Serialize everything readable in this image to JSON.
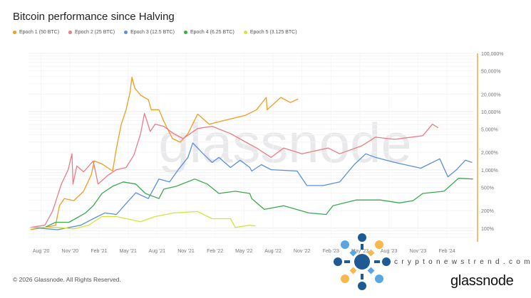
{
  "title": "Bitcoin performance since Halving",
  "copyright": "© 2026 Glassnode. All Rights Reserved.",
  "watermark": "glassnode",
  "brand_logo": "glassnode",
  "overlay_site": "cryptonewstrend.com",
  "chart_data": {
    "type": "line",
    "title": "Bitcoin performance since Halving",
    "xlabel": "",
    "ylabel": "",
    "x_units": "months since May 2020 halving",
    "xlim": [
      1.4,
      47.5
    ],
    "y_scale": "log",
    "ylim": [
      67,
      100000
    ],
    "grid": true,
    "legend_position": "top-left",
    "x_ticks": [
      {
        "x": 2.7,
        "label": "Aug '20"
      },
      {
        "x": 5.7,
        "label": "Nov '20"
      },
      {
        "x": 8.7,
        "label": "Feb '21"
      },
      {
        "x": 11.7,
        "label": "May '21"
      },
      {
        "x": 14.7,
        "label": "Aug '21"
      },
      {
        "x": 17.7,
        "label": "Nov '21"
      },
      {
        "x": 20.7,
        "label": "Feb '22"
      },
      {
        "x": 23.7,
        "label": "May '22"
      },
      {
        "x": 26.7,
        "label": "Aug '22"
      },
      {
        "x": 29.7,
        "label": "Nov '22"
      },
      {
        "x": 32.7,
        "label": "Feb '23"
      },
      {
        "x": 35.7,
        "label": "May '23"
      },
      {
        "x": 38.7,
        "label": "Aug '23"
      },
      {
        "x": 41.7,
        "label": "Nov '23"
      },
      {
        "x": 44.7,
        "label": "Feb '24"
      }
    ],
    "y_ticks": [
      {
        "y": 100000,
        "label": "100,000%"
      },
      {
        "y": 50000,
        "label": "50,000%"
      },
      {
        "y": 20000,
        "label": "20,000%"
      },
      {
        "y": 10000,
        "label": "10,000%"
      },
      {
        "y": 5000,
        "label": "5,000%"
      },
      {
        "y": 2000,
        "label": "2,000%"
      },
      {
        "y": 1000,
        "label": "1,000%"
      },
      {
        "y": 500,
        "label": "500%"
      },
      {
        "y": 200,
        "label": "200%"
      },
      {
        "y": 100,
        "label": "100%"
      }
    ],
    "series": [
      {
        "name": "Epoch 1 (50 BTC)",
        "color": "#f39c1f",
        "points": [
          [
            1.6,
            94
          ],
          [
            3.1,
            103
          ],
          [
            4.2,
            112
          ],
          [
            4.6,
            242
          ],
          [
            5.1,
            322
          ],
          [
            6.1,
            296
          ],
          [
            7.1,
            429
          ],
          [
            7.9,
            826
          ],
          [
            8.2,
            1420
          ],
          [
            9.0,
            1267
          ],
          [
            10.1,
            953
          ],
          [
            10.5,
            2373
          ],
          [
            11.0,
            6081
          ],
          [
            11.5,
            10770
          ],
          [
            11.9,
            21380
          ],
          [
            12.1,
            38900
          ],
          [
            12.4,
            25350
          ],
          [
            13.0,
            19050
          ],
          [
            13.8,
            16060
          ],
          [
            14.1,
            10770
          ],
          [
            14.9,
            10770
          ],
          [
            15.4,
            6823
          ],
          [
            16.3,
            3443
          ],
          [
            17.1,
            2985
          ],
          [
            17.9,
            4198
          ],
          [
            18.9,
            9080
          ],
          [
            20.1,
            6081
          ],
          [
            21.6,
            7015
          ],
          [
            23.8,
            8570
          ],
          [
            25.0,
            10770
          ],
          [
            26.0,
            17500
          ],
          [
            26.1,
            10770
          ],
          [
            27.5,
            17500
          ],
          [
            28.5,
            14320
          ],
          [
            29.3,
            16520
          ]
        ]
      },
      {
        "name": "Epoch 2 (25 BTC)",
        "color": "#ec7b85",
        "points": [
          [
            1.6,
            103
          ],
          [
            3.1,
            112
          ],
          [
            3.9,
            198
          ],
          [
            4.8,
            570
          ],
          [
            5.5,
            1008
          ],
          [
            5.9,
            1888
          ],
          [
            6.0,
            570
          ],
          [
            6.4,
            1164
          ],
          [
            7.1,
            926
          ],
          [
            8.1,
            1420
          ],
          [
            8.6,
            570
          ],
          [
            9.6,
            803
          ],
          [
            10.5,
            1008
          ],
          [
            11.5,
            1099
          ],
          [
            12.3,
            1786
          ],
          [
            13.0,
            4198
          ],
          [
            13.4,
            9333
          ],
          [
            14.0,
            4571
          ],
          [
            14.5,
            6081
          ],
          [
            15.4,
            5585
          ],
          [
            16.4,
            4198
          ],
          [
            17.4,
            3443
          ],
          [
            18.9,
            5129
          ],
          [
            20.4,
            5585
          ],
          [
            22.3,
            4198
          ],
          [
            24.3,
            2735
          ],
          [
            25.0,
            2373
          ],
          [
            26.5,
            1637
          ],
          [
            27.8,
            2373
          ],
          [
            29.7,
            1888
          ],
          [
            32.4,
            2373
          ],
          [
            33.6,
            1888
          ],
          [
            35.9,
            2587
          ],
          [
            37.3,
            3640
          ],
          [
            39.3,
            3342
          ],
          [
            42.2,
            3855
          ],
          [
            43.2,
            6081
          ],
          [
            43.8,
            5272
          ]
        ]
      },
      {
        "name": "Epoch 3 (12.5 BTC)",
        "color": "#5b8fdc",
        "points": [
          [
            1.6,
            103
          ],
          [
            4.4,
            94
          ],
          [
            6.8,
            112
          ],
          [
            8.1,
            145
          ],
          [
            9.3,
            182
          ],
          [
            10.5,
            172
          ],
          [
            11.5,
            264
          ],
          [
            12.5,
            405
          ],
          [
            13.8,
            322
          ],
          [
            14.9,
            697
          ],
          [
            16.0,
            621
          ],
          [
            16.9,
            1008
          ],
          [
            17.9,
            1637
          ],
          [
            18.4,
            2897
          ],
          [
            19.4,
            1945
          ],
          [
            20.4,
            1342
          ],
          [
            21.1,
            1637
          ],
          [
            22.3,
            1099
          ],
          [
            23.3,
            1462
          ],
          [
            24.3,
            1099
          ],
          [
            24.5,
            953
          ],
          [
            25.5,
            1230
          ],
          [
            26.5,
            1008
          ],
          [
            29.2,
            953
          ],
          [
            30.2,
            538
          ],
          [
            31.9,
            538
          ],
          [
            33.6,
            621
          ],
          [
            35.1,
            1230
          ],
          [
            36.3,
            1888
          ],
          [
            37.3,
            1637
          ],
          [
            39.3,
            1342
          ],
          [
            42.0,
            1067
          ],
          [
            43.96,
            1549
          ],
          [
            44.8,
            759
          ],
          [
            45.7,
            1008
          ],
          [
            46.6,
            1462
          ],
          [
            47.3,
            1342
          ]
        ]
      },
      {
        "name": "Epoch 4 (6.25 BTC)",
        "color": "#3aaa4f",
        "points": [
          [
            1.6,
            103
          ],
          [
            3.1,
            103
          ],
          [
            4.2,
            126
          ],
          [
            5.6,
            126
          ],
          [
            7.3,
            182
          ],
          [
            8.1,
            242
          ],
          [
            9.0,
            394
          ],
          [
            10.1,
            523
          ],
          [
            11.2,
            621
          ],
          [
            12.5,
            570
          ],
          [
            13.5,
            394
          ],
          [
            14.9,
            322
          ],
          [
            15.4,
            467
          ],
          [
            16.7,
            523
          ],
          [
            18.6,
            697
          ],
          [
            19.9,
            570
          ],
          [
            21.1,
            394
          ],
          [
            22.8,
            429
          ],
          [
            24.3,
            394
          ],
          [
            24.5,
            322
          ],
          [
            25.8,
            210
          ],
          [
            27.8,
            242
          ],
          [
            30.4,
            182
          ],
          [
            32.2,
            172
          ],
          [
            32.9,
            242
          ],
          [
            35.3,
            304
          ],
          [
            37.8,
            304
          ],
          [
            39.8,
            271
          ],
          [
            41.2,
            296
          ],
          [
            42.2,
            394
          ],
          [
            44.4,
            429
          ],
          [
            45.9,
            716
          ],
          [
            47.4,
            697
          ]
        ]
      },
      {
        "name": "Epoch 5 (3.125 BTC)",
        "color": "#d4e43a",
        "points": [
          [
            1.6,
            103
          ],
          [
            4.4,
            103
          ],
          [
            6.1,
            97
          ],
          [
            7.6,
            112
          ],
          [
            9.0,
            158
          ],
          [
            10.5,
            158
          ],
          [
            13.0,
            129
          ],
          [
            14.5,
            158
          ],
          [
            16.4,
            182
          ],
          [
            18.9,
            193
          ],
          [
            20.4,
            145
          ],
          [
            22.3,
            145
          ],
          [
            22.8,
            103
          ],
          [
            24.3,
            112
          ],
          [
            24.9,
            109
          ]
        ]
      }
    ]
  }
}
